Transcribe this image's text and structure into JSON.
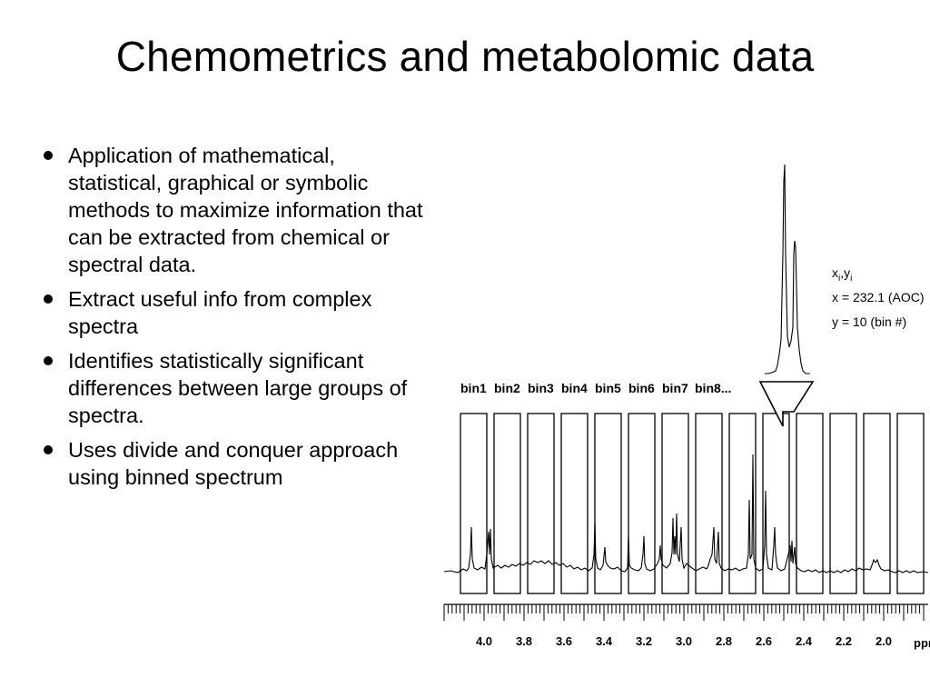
{
  "title": "Chemometrics and metabolomic data",
  "bullets": [
    "Application of mathematical, statistical, graphical or symbolic methods to maximize information that can be extracted from chemical or spectral data.",
    "Extract useful info from complex spectra",
    "Identifies statistically significant differences between large groups of spectra.",
    "Uses divide and conquer approach using binned spectrum"
  ],
  "figure": {
    "bin_labels": [
      "bin1",
      "bin2",
      "bin3",
      "bin4",
      "bin5",
      "bin6",
      "bin7",
      "bin8..."
    ],
    "annotation": {
      "line1_x": "x",
      "line1_sub_i": "i",
      "line1_comma": ",",
      "line1_y": "y",
      "line2": "x = 232.1 (AOC)",
      "line3": "y = 10 (bin #)"
    },
    "axis_ticks": [
      "4.0",
      "3.8",
      "3.6",
      "3.4",
      "3.2",
      "3.0",
      "2.8",
      "2.6",
      "2.4",
      "2.2",
      "2.0"
    ],
    "axis_unit": "ppm"
  }
}
